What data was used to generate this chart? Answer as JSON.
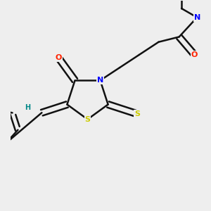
{
  "background_color": "#eeeeee",
  "atom_colors": {
    "C": "#000000",
    "N": "#0000ff",
    "O": "#ff2200",
    "S": "#cccc00",
    "H": "#008888"
  },
  "bond_color": "#111111",
  "bond_width": 1.8,
  "dbo": 0.055,
  "figsize": [
    3.0,
    3.0
  ],
  "dpi": 100
}
